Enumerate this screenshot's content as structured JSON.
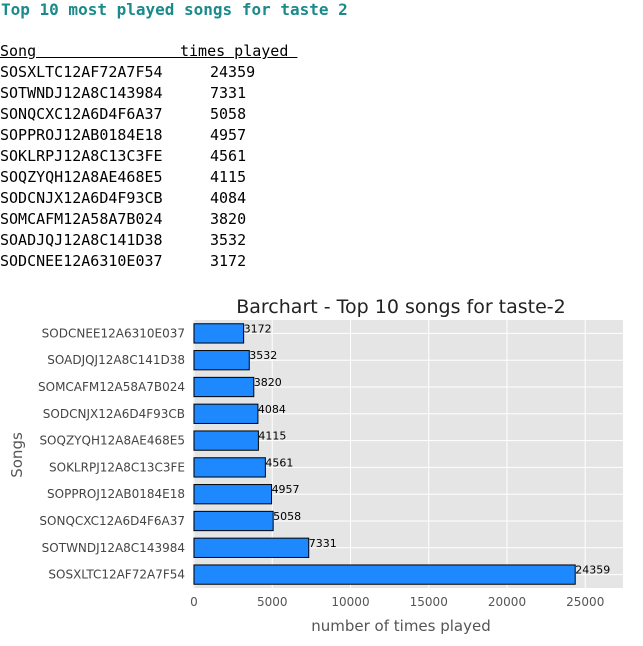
{
  "header": {
    "title": "Top 10 most played songs for taste 2"
  },
  "table": {
    "col_song": "Song                ",
    "col_times": "times played ",
    "rows": [
      {
        "song": "SOSXLTC12AF72A7F54",
        "times": "24359"
      },
      {
        "song": "SOTWNDJ12A8C143984",
        "times": "7331"
      },
      {
        "song": "SONQCXC12A6D4F6A37",
        "times": "5058"
      },
      {
        "song": "SOPPROJ12AB0184E18",
        "times": "4957"
      },
      {
        "song": "SOKLRPJ12A8C13C3FE",
        "times": "4561"
      },
      {
        "song": "SOQZYQH12A8AE468E5",
        "times": "4115"
      },
      {
        "song": "SODCNJX12A6D4F93CB",
        "times": "4084"
      },
      {
        "song": "SOMCAFM12A58A7B024",
        "times": "3820"
      },
      {
        "song": "SOADJQJ12A8C141D38",
        "times": "3532"
      },
      {
        "song": "SODCNEE12A6310E037",
        "times": "3172"
      }
    ]
  },
  "chart_data": {
    "type": "bar",
    "orientation": "horizontal",
    "title": "Barchart - Top 10 songs for taste-2",
    "xlabel": "number of times played",
    "ylabel": "Songs",
    "categories": [
      "SOSXLTC12AF72A7F54",
      "SOTWNDJ12A8C143984",
      "SONQCXC12A6D4F6A37",
      "SOPPROJ12AB0184E18",
      "SOKLRPJ12A8C13C3FE",
      "SOQZYQH12A8AE468E5",
      "SODCNJX12A6D4F93CB",
      "SOMCAFM12A58A7B024",
      "SOADJQJ12A8C141D38",
      "SODCNEE12A6310E037"
    ],
    "values": [
      24359,
      7331,
      5058,
      4957,
      4561,
      4115,
      4084,
      3820,
      3532,
      3172
    ],
    "xlim": [
      0,
      26000
    ],
    "xticks": [
      0,
      5000,
      10000,
      15000,
      20000,
      25000
    ],
    "grid": true,
    "bar_color": "#1e88ff",
    "bar_edge_color": "#000000",
    "plot_background": "#e5e5e5"
  }
}
